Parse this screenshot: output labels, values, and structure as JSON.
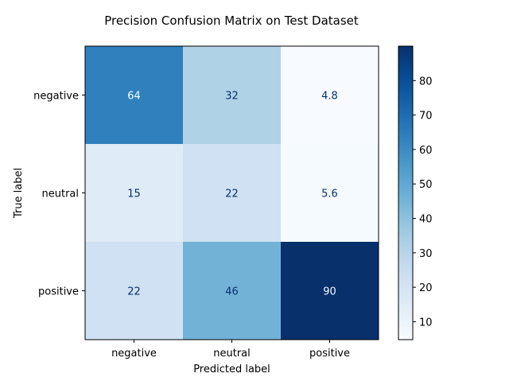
{
  "chart_data": {
    "type": "heatmap",
    "title": "Precision Confusion Matrix on Test Dataset",
    "xlabel": "Predicted label",
    "ylabel": "True label",
    "x_categories": [
      "negative",
      "neutral",
      "positive"
    ],
    "y_categories": [
      "negative",
      "neutral",
      "positive"
    ],
    "values": [
      [
        64,
        32,
        4.8
      ],
      [
        15,
        22,
        5.6
      ],
      [
        22,
        46,
        90
      ]
    ],
    "cell_labels": [
      [
        "64",
        "32",
        "4.8"
      ],
      [
        "15",
        "22",
        "5.6"
      ],
      [
        "22",
        "46",
        "90"
      ]
    ],
    "color_range": [
      4.8,
      90
    ],
    "colormap": "Blues",
    "colorbar": {
      "ticks": [
        10,
        20,
        30,
        40,
        50,
        60,
        70,
        80
      ],
      "tick_labels": [
        "10",
        "20",
        "30",
        "40",
        "50",
        "60",
        "70",
        "80"
      ]
    },
    "grid": false
  }
}
